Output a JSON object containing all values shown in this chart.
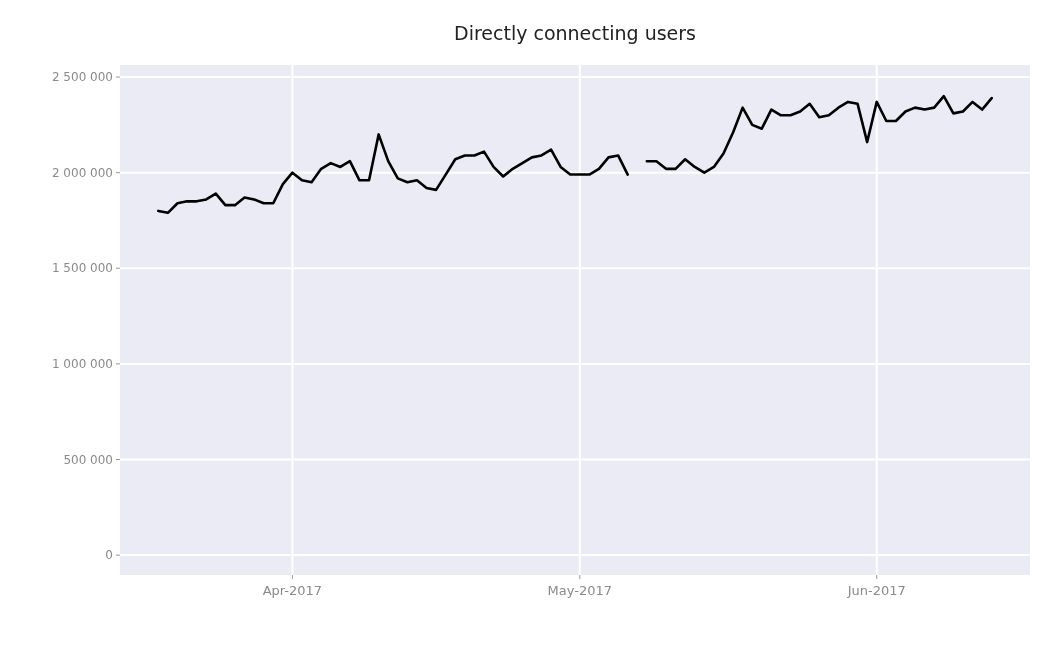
{
  "chart_data": {
    "type": "line",
    "title": "Directly connecting users",
    "x": [
      "2017-03-18",
      "2017-03-19",
      "2017-03-20",
      "2017-03-21",
      "2017-03-22",
      "2017-03-23",
      "2017-03-24",
      "2017-03-25",
      "2017-03-26",
      "2017-03-27",
      "2017-03-28",
      "2017-03-29",
      "2017-03-30",
      "2017-03-31",
      "2017-04-01",
      "2017-04-02",
      "2017-04-03",
      "2017-04-04",
      "2017-04-05",
      "2017-04-06",
      "2017-04-07",
      "2017-04-08",
      "2017-04-09",
      "2017-04-10",
      "2017-04-11",
      "2017-04-12",
      "2017-04-13",
      "2017-04-14",
      "2017-04-15",
      "2017-04-16",
      "2017-04-17",
      "2017-04-18",
      "2017-04-19",
      "2017-04-20",
      "2017-04-21",
      "2017-04-22",
      "2017-04-23",
      "2017-04-24",
      "2017-04-25",
      "2017-04-26",
      "2017-04-27",
      "2017-04-28",
      "2017-04-29",
      "2017-04-30",
      "2017-05-01",
      "2017-05-02",
      "2017-05-03",
      "2017-05-04",
      "2017-05-05",
      "2017-05-06",
      "2017-05-07",
      "2017-05-08",
      "2017-05-09",
      "2017-05-10",
      "2017-05-11",
      "2017-05-12",
      "2017-05-13",
      "2017-05-14",
      "2017-05-15",
      "2017-05-16",
      "2017-05-17",
      "2017-05-18",
      "2017-05-19",
      "2017-05-20",
      "2017-05-21",
      "2017-05-22",
      "2017-05-23",
      "2017-05-24",
      "2017-05-25",
      "2017-05-26",
      "2017-05-27",
      "2017-05-28",
      "2017-05-29",
      "2017-05-30",
      "2017-05-31",
      "2017-06-01",
      "2017-06-02",
      "2017-06-03",
      "2017-06-04",
      "2017-06-05",
      "2017-06-06",
      "2017-06-07",
      "2017-06-08",
      "2017-06-09",
      "2017-06-10",
      "2017-06-11",
      "2017-06-12",
      "2017-06-13"
    ],
    "series": [
      {
        "color": "#000000",
        "values": [
          1800000,
          1790000,
          1840000,
          1850000,
          1850000,
          1860000,
          1890000,
          1830000,
          1830000,
          1870000,
          1860000,
          1840000,
          1840000,
          1940000,
          2000000,
          1960000,
          1950000,
          2020000,
          2050000,
          2030000,
          2060000,
          1960000,
          1960000,
          2200000,
          2060000,
          1970000,
          1950000,
          1960000,
          1920000,
          1910000,
          1990000,
          2070000,
          2090000,
          2090000,
          2110000,
          2030000,
          1980000,
          2020000,
          2050000,
          2080000,
          2090000,
          2120000,
          2030000,
          1990000,
          1990000,
          1990000,
          2020000,
          2080000,
          2090000,
          1990000,
          null,
          2060000,
          2060000,
          2020000,
          2020000,
          2070000,
          2030000,
          2000000,
          2030000,
          2100000,
          2210000,
          2340000,
          2250000,
          2230000,
          2330000,
          2300000,
          2300000,
          2320000,
          2360000,
          2290000,
          2300000,
          2340000,
          2370000,
          2360000,
          2160000,
          2370000,
          2270000,
          2270000,
          2320000,
          2340000,
          2330000,
          2340000,
          2400000,
          2310000,
          2320000,
          2370000,
          2330000,
          2390000
        ]
      }
    ],
    "xlim": [
      "2017-03-14",
      "2017-06-17"
    ],
    "xticks": [
      {
        "value": "2017-04-01",
        "label": "Apr-2017"
      },
      {
        "value": "2017-05-01",
        "label": "May-2017"
      },
      {
        "value": "2017-06-01",
        "label": "Jun-2017"
      }
    ],
    "ylim": [
      -104000,
      2563000
    ],
    "yticks": [
      0,
      {
        "value": 500000,
        "label": "500 000"
      },
      {
        "value": 1000000,
        "label": "1 000 000"
      },
      {
        "value": 1500000,
        "label": "1 500 000"
      },
      {
        "value": 2000000,
        "label": "2 000 000"
      },
      {
        "value": 2500000,
        "label": "2 500 000"
      }
    ],
    "grid": true,
    "line_style": "solid"
  }
}
